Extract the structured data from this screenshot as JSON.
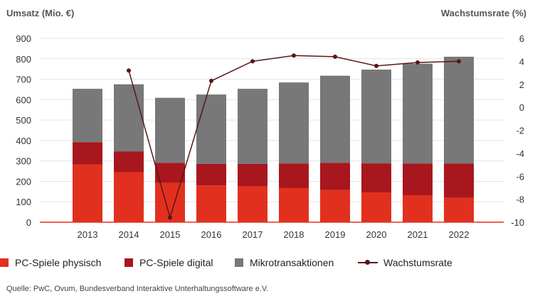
{
  "chart_data": {
    "type": "bar",
    "stacked": true,
    "categories": [
      "2013",
      "2014",
      "2015",
      "2016",
      "2017",
      "2018",
      "2019",
      "2020",
      "2021",
      "2022"
    ],
    "ylabel": "Umsatz (Mio. €)",
    "y2label": "Wachstumsrate (%)",
    "ylim": [
      0,
      900
    ],
    "y2lim": [
      -10,
      6
    ],
    "yticks": [
      0,
      100,
      200,
      300,
      400,
      500,
      600,
      700,
      800,
      900
    ],
    "y2ticks": [
      -10,
      -8,
      -6,
      -4,
      -2,
      0,
      2,
      4,
      6
    ],
    "grid": true,
    "legend_position": "bottom",
    "series": [
      {
        "name": "PC-Spiele physisch",
        "color": "#e2301f",
        "values": [
          282,
          245,
          193,
          180,
          175,
          167,
          157,
          146,
          132,
          119
        ]
      },
      {
        "name": "PC-Spiele digital",
        "color": "#a8171d",
        "values": [
          110,
          102,
          98,
          105,
          110,
          120,
          133,
          142,
          155,
          168
        ]
      },
      {
        "name": "Mikrotransaktionen",
        "color": "#787878",
        "values": [
          261,
          328,
          318,
          340,
          368,
          397,
          427,
          459,
          489,
          523
        ]
      },
      {
        "name": "Wachstumsrate",
        "type": "line",
        "axis": "right",
        "color": "#5a1616",
        "values": [
          null,
          3.2,
          -9.6,
          2.3,
          4.0,
          4.5,
          4.4,
          3.6,
          3.9,
          4.0
        ]
      }
    ]
  },
  "source": "Quelle: PwC, Ovum, Bundesverband Interaktive Unterhaltungssoftware e.V."
}
